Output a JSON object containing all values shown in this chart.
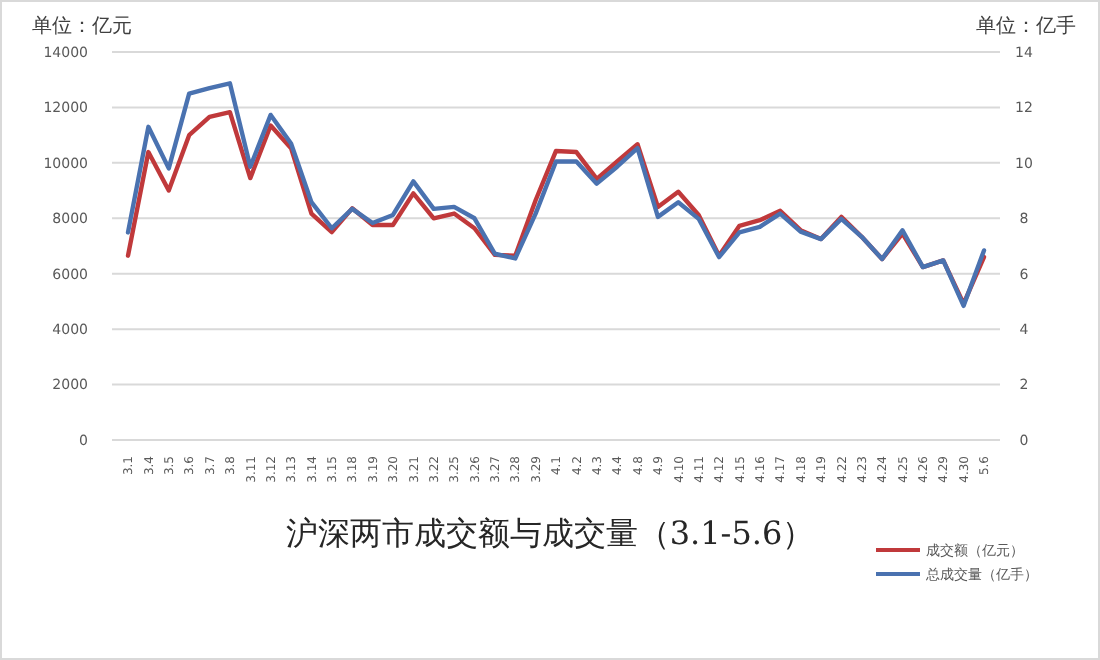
{
  "chart_data": {
    "type": "line",
    "title": "沪深两市成交额与成交量（3.1-5.6）",
    "ylabel": "单位：亿元",
    "y2label": "单位：亿手",
    "categories": [
      "3.1",
      "3.4",
      "3.5",
      "3.6",
      "3.7",
      "3.8",
      "3.11",
      "3.12",
      "3.13",
      "3.14",
      "3.15",
      "3.18",
      "3.19",
      "3.20",
      "3.21",
      "3.22",
      "3.25",
      "3.26",
      "3.27",
      "3.28",
      "3.29",
      "4.1",
      "4.2",
      "4.3",
      "4.4",
      "4.8",
      "4.9",
      "4.10",
      "4.11",
      "4.12",
      "4.15",
      "4.16",
      "4.17",
      "4.18",
      "4.19",
      "4.22",
      "4.23",
      "4.24",
      "4.25",
      "4.26",
      "4.29",
      "4.30",
      "5.6"
    ],
    "series": [
      {
        "name": "成交额（亿元）",
        "color": "#c0393b",
        "values": [
          6650,
          10390,
          9000,
          11000,
          11660,
          11830,
          9450,
          11350,
          10530,
          8170,
          7500,
          8360,
          7760,
          7760,
          8900,
          8000,
          8170,
          7640,
          6680,
          6650,
          8650,
          10430,
          10390,
          9420,
          10050,
          10670,
          8410,
          8960,
          8120,
          6650,
          7730,
          7930,
          8270,
          7570,
          7250,
          8050,
          7330,
          6530,
          7450,
          6240,
          6480,
          4920,
          6600
        ]
      },
      {
        "name": "总成交量（亿手）",
        "color": "#4a72b0",
        "axis": "y2",
        "values": [
          7.49,
          11.3,
          9.8,
          12.5,
          12.7,
          12.87,
          9.86,
          11.73,
          10.7,
          8.58,
          7.64,
          8.34,
          7.83,
          8.12,
          9.33,
          8.34,
          8.41,
          8.0,
          6.72,
          6.55,
          8.17,
          10.05,
          10.05,
          9.25,
          9.86,
          10.53,
          8.05,
          8.58,
          7.98,
          6.6,
          7.49,
          7.69,
          8.17,
          7.52,
          7.25,
          7.98,
          7.33,
          6.53,
          7.57,
          6.24,
          6.48,
          4.84,
          6.84
        ]
      }
    ],
    "ylim": [
      0,
      14000
    ],
    "yticks": [
      0,
      2000,
      4000,
      6000,
      8000,
      10000,
      12000,
      14000
    ],
    "y2lim": [
      0,
      14
    ],
    "y2ticks": [
      0,
      2,
      4,
      6,
      8,
      10,
      12,
      14
    ],
    "grid": "y",
    "legend": "bottom right"
  }
}
